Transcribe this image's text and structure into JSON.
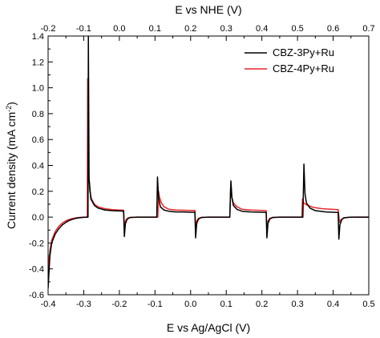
{
  "chart_data": {
    "type": "line",
    "xlabel": "E vs Ag/AgCl (V)",
    "x2label": "E vs NHE (V)",
    "ylabel_main": "Current density (mA cm",
    "ylabel_sup": "-2",
    "ylabel_close": ")",
    "xlim": [
      -0.4,
      0.5
    ],
    "x2lim": [
      -0.2,
      0.7
    ],
    "ylim": [
      -0.6,
      1.4
    ],
    "x_ticks": [
      "-0.4",
      "-0.3",
      "-0.2",
      "-0.1",
      "0.0",
      "0.1",
      "0.2",
      "0.3",
      "0.4",
      "0.5"
    ],
    "x2_ticks": [
      "-0.2",
      "-0.1",
      "0.0",
      "0.1",
      "0.2",
      "0.3",
      "0.4",
      "0.5",
      "0.6",
      "0.7"
    ],
    "y_ticks": [
      "-0.6",
      "-0.4",
      "-0.2",
      "0.0",
      "0.2",
      "0.4",
      "0.6",
      "0.8",
      "1.0",
      "1.2",
      "1.4"
    ],
    "legend_position": "top-right",
    "series": [
      {
        "name": "CBZ-3Py+Ru",
        "color": "#000000",
        "points": [
          [
            -0.4,
            -0.55
          ],
          [
            -0.395,
            -0.3
          ],
          [
            -0.39,
            -0.2
          ],
          [
            -0.38,
            -0.13
          ],
          [
            -0.37,
            -0.09
          ],
          [
            -0.36,
            -0.06
          ],
          [
            -0.35,
            -0.04
          ],
          [
            -0.34,
            -0.025
          ],
          [
            -0.33,
            -0.015
          ],
          [
            -0.32,
            -0.008
          ],
          [
            -0.31,
            -0.004
          ],
          [
            -0.3,
            -0.002
          ],
          [
            -0.29,
            0.0
          ],
          [
            -0.288,
            0.0
          ],
          [
            -0.287,
            1.4
          ],
          [
            -0.285,
            0.3
          ],
          [
            -0.28,
            0.14
          ],
          [
            -0.27,
            0.09
          ],
          [
            -0.26,
            0.07
          ],
          [
            -0.24,
            0.055
          ],
          [
            -0.22,
            0.05
          ],
          [
            -0.2,
            0.048
          ],
          [
            -0.19,
            0.046
          ],
          [
            -0.188,
            0.046
          ],
          [
            -0.186,
            -0.15
          ],
          [
            -0.183,
            -0.05
          ],
          [
            -0.178,
            -0.015
          ],
          [
            -0.17,
            -0.003
          ],
          [
            -0.15,
            0.0
          ],
          [
            -0.13,
            0.0
          ],
          [
            -0.1,
            0.0
          ],
          [
            -0.095,
            0.0
          ],
          [
            -0.093,
            0.31
          ],
          [
            -0.09,
            0.15
          ],
          [
            -0.085,
            0.08
          ],
          [
            -0.075,
            0.055
          ],
          [
            -0.06,
            0.045
          ],
          [
            -0.04,
            0.04
          ],
          [
            -0.02,
            0.04
          ],
          [
            0.0,
            0.038
          ],
          [
            0.01,
            0.038
          ],
          [
            0.012,
            0.038
          ],
          [
            0.014,
            -0.16
          ],
          [
            0.017,
            -0.05
          ],
          [
            0.022,
            -0.015
          ],
          [
            0.03,
            -0.003
          ],
          [
            0.05,
            0.0
          ],
          [
            0.08,
            0.0
          ],
          [
            0.1,
            0.0
          ],
          [
            0.11,
            0.0
          ],
          [
            0.113,
            0.28
          ],
          [
            0.116,
            0.15
          ],
          [
            0.12,
            0.09
          ],
          [
            0.13,
            0.06
          ],
          [
            0.145,
            0.045
          ],
          [
            0.17,
            0.04
          ],
          [
            0.2,
            0.038
          ],
          [
            0.21,
            0.037
          ],
          [
            0.212,
            0.037
          ],
          [
            0.214,
            -0.16
          ],
          [
            0.217,
            -0.05
          ],
          [
            0.222,
            -0.015
          ],
          [
            0.23,
            -0.003
          ],
          [
            0.25,
            0.0
          ],
          [
            0.28,
            0.0
          ],
          [
            0.3,
            0.0
          ],
          [
            0.315,
            0.0
          ],
          [
            0.318,
            0.41
          ],
          [
            0.321,
            0.18
          ],
          [
            0.325,
            0.11
          ],
          [
            0.335,
            0.07
          ],
          [
            0.35,
            0.05
          ],
          [
            0.38,
            0.04
          ],
          [
            0.4,
            0.038
          ],
          [
            0.412,
            0.036
          ],
          [
            0.414,
            0.036
          ],
          [
            0.416,
            -0.17
          ],
          [
            0.419,
            -0.06
          ],
          [
            0.424,
            -0.02
          ],
          [
            0.43,
            -0.005
          ],
          [
            0.45,
            0.0
          ],
          [
            0.48,
            0.0
          ],
          [
            0.5,
            0.0
          ]
        ]
      },
      {
        "name": "CBZ-4Py+Ru",
        "color": "#e8262b",
        "points": [
          [
            -0.4,
            -0.4
          ],
          [
            -0.395,
            -0.26
          ],
          [
            -0.39,
            -0.18
          ],
          [
            -0.38,
            -0.11
          ],
          [
            -0.37,
            -0.07
          ],
          [
            -0.36,
            -0.045
          ],
          [
            -0.35,
            -0.028
          ],
          [
            -0.34,
            -0.017
          ],
          [
            -0.33,
            -0.01
          ],
          [
            -0.32,
            -0.005
          ],
          [
            -0.31,
            -0.002
          ],
          [
            -0.3,
            0.0
          ],
          [
            -0.292,
            0.0
          ],
          [
            -0.29,
            0.0
          ],
          [
            -0.289,
            1.07
          ],
          [
            -0.287,
            0.4
          ],
          [
            -0.283,
            0.2
          ],
          [
            -0.278,
            0.14
          ],
          [
            -0.27,
            0.1
          ],
          [
            -0.26,
            0.08
          ],
          [
            -0.24,
            0.065
          ],
          [
            -0.22,
            0.058
          ],
          [
            -0.2,
            0.055
          ],
          [
            -0.19,
            0.054
          ],
          [
            -0.188,
            0.054
          ],
          [
            -0.186,
            -0.09
          ],
          [
            -0.183,
            -0.03
          ],
          [
            -0.178,
            -0.01
          ],
          [
            -0.17,
            -0.002
          ],
          [
            -0.15,
            0.0
          ],
          [
            -0.1,
            0.0
          ],
          [
            -0.092,
            0.0
          ],
          [
            -0.09,
            0.2
          ],
          [
            -0.087,
            0.15
          ],
          [
            -0.082,
            0.11
          ],
          [
            -0.075,
            0.08
          ],
          [
            -0.06,
            0.06
          ],
          [
            -0.04,
            0.055
          ],
          [
            -0.02,
            0.053
          ],
          [
            0.0,
            0.052
          ],
          [
            0.01,
            0.052
          ],
          [
            0.012,
            0.052
          ],
          [
            0.014,
            -0.08
          ],
          [
            0.017,
            -0.03
          ],
          [
            0.022,
            -0.01
          ],
          [
            0.03,
            -0.002
          ],
          [
            0.05,
            0.0
          ],
          [
            0.1,
            0.0
          ],
          [
            0.11,
            0.0
          ],
          [
            0.112,
            0.22
          ],
          [
            0.115,
            0.16
          ],
          [
            0.12,
            0.11
          ],
          [
            0.13,
            0.08
          ],
          [
            0.145,
            0.06
          ],
          [
            0.17,
            0.055
          ],
          [
            0.2,
            0.052
          ],
          [
            0.21,
            0.05
          ],
          [
            0.212,
            0.05
          ],
          [
            0.214,
            -0.08
          ],
          [
            0.217,
            -0.03
          ],
          [
            0.222,
            -0.01
          ],
          [
            0.23,
            -0.002
          ],
          [
            0.25,
            0.0
          ],
          [
            0.3,
            0.0
          ],
          [
            0.312,
            0.0
          ],
          [
            0.314,
            0.14
          ],
          [
            0.317,
            0.11
          ],
          [
            0.322,
            0.1
          ],
          [
            0.33,
            0.09
          ],
          [
            0.345,
            0.075
          ],
          [
            0.37,
            0.065
          ],
          [
            0.4,
            0.06
          ],
          [
            0.41,
            0.058
          ],
          [
            0.412,
            0.058
          ],
          [
            0.414,
            0.058
          ],
          [
            0.418,
            -0.04
          ],
          [
            0.422,
            -0.02
          ],
          [
            0.43,
            -0.006
          ],
          [
            0.445,
            -0.001
          ],
          [
            0.47,
            0.0
          ],
          [
            0.5,
            0.0
          ]
        ]
      }
    ]
  }
}
